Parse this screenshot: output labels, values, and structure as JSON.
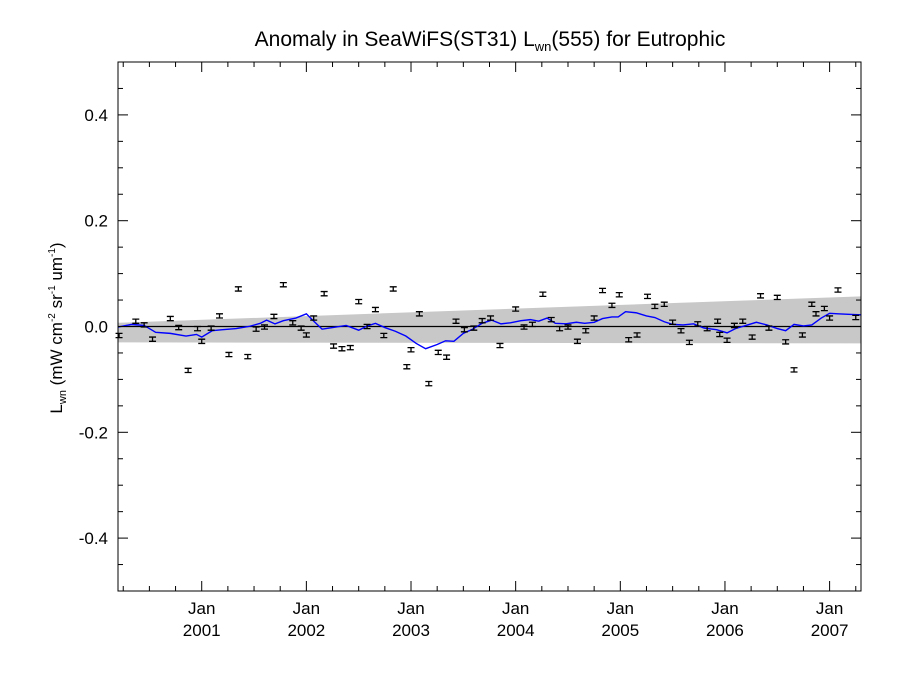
{
  "chart_data": {
    "type": "scatter",
    "title": {
      "prefix": "Anomaly in SeaWiFS(ST31) L",
      "sub": "wn",
      "suffix": "(555) for Eutrophic"
    },
    "ylabel": {
      "base": "L",
      "base_sub": "wn",
      "unit_open": " (mW cm",
      "sup1": "-2",
      "unit_mid": " sr",
      "sup2": "-1",
      "unit_mid2": " um",
      "sup3": "-1",
      "unit_close": ")"
    },
    "ylim": [
      -0.5,
      0.5
    ],
    "xlim": [
      2000.2,
      2007.3
    ],
    "y_ticks": [
      {
        "value": 0.4,
        "label": "0.4"
      },
      {
        "value": 0.2,
        "label": "0.2"
      },
      {
        "value": 0.0,
        "label": "0.0"
      },
      {
        "value": -0.2,
        "label": "-0.2"
      },
      {
        "value": -0.4,
        "label": "-0.4"
      }
    ],
    "x_ticks": [
      {
        "value": 2001.0,
        "line1": "Jan",
        "line2": "2001"
      },
      {
        "value": 2002.0,
        "line1": "Jan",
        "line2": "2002"
      },
      {
        "value": 2003.0,
        "line1": "Jan",
        "line2": "2003"
      },
      {
        "value": 2004.0,
        "line1": "Jan",
        "line2": "2004"
      },
      {
        "value": 2005.0,
        "line1": "Jan",
        "line2": "2005"
      },
      {
        "value": 2006.0,
        "line1": "Jan",
        "line2": "2006"
      },
      {
        "value": 2007.0,
        "line1": "Jan",
        "line2": "2007"
      }
    ],
    "band": {
      "color": "#c8c8c8",
      "upper": [
        [
          2000.2,
          0.007
        ],
        [
          2007.3,
          0.057
        ]
      ],
      "lower": [
        [
          2000.2,
          -0.03
        ],
        [
          2007.3,
          -0.032
        ]
      ]
    },
    "zero_line": {
      "value": 0.0,
      "color": "#000000"
    },
    "series": [
      {
        "kind": "points_with_error",
        "color": "#000000",
        "error": 0.004,
        "points": [
          [
            2000.21,
            -0.017
          ],
          [
            2000.37,
            0.01
          ],
          [
            2000.45,
            0.003
          ],
          [
            2000.53,
            -0.024
          ],
          [
            2000.7,
            0.015
          ],
          [
            2000.78,
            -0.002
          ],
          [
            2000.87,
            -0.083
          ],
          [
            2000.96,
            -0.004
          ],
          [
            2001.0,
            -0.028
          ],
          [
            2001.09,
            -0.003
          ],
          [
            2001.17,
            0.02
          ],
          [
            2001.26,
            -0.053
          ],
          [
            2001.35,
            0.071
          ],
          [
            2001.44,
            -0.057
          ],
          [
            2001.52,
            -0.005
          ],
          [
            2001.6,
            -0.001
          ],
          [
            2001.69,
            0.019
          ],
          [
            2001.78,
            0.079
          ],
          [
            2001.87,
            0.007
          ],
          [
            2001.95,
            -0.003
          ],
          [
            2002.0,
            -0.016
          ],
          [
            2002.07,
            0.016
          ],
          [
            2002.17,
            0.062
          ],
          [
            2002.26,
            -0.037
          ],
          [
            2002.34,
            -0.042
          ],
          [
            2002.42,
            -0.04
          ],
          [
            2002.5,
            0.047
          ],
          [
            2002.58,
            0.0
          ],
          [
            2002.66,
            0.032
          ],
          [
            2002.74,
            -0.017
          ],
          [
            2002.83,
            0.071
          ],
          [
            2002.96,
            -0.076
          ],
          [
            2003.0,
            -0.044
          ],
          [
            2003.08,
            0.024
          ],
          [
            2003.17,
            -0.108
          ],
          [
            2003.26,
            -0.049
          ],
          [
            2003.34,
            -0.058
          ],
          [
            2003.43,
            0.01
          ],
          [
            2003.51,
            -0.006
          ],
          [
            2003.6,
            -0.003
          ],
          [
            2003.68,
            0.011
          ],
          [
            2003.76,
            0.016
          ],
          [
            2003.85,
            -0.036
          ],
          [
            2004.0,
            0.033
          ],
          [
            2004.08,
            -0.001
          ],
          [
            2004.16,
            0.004
          ],
          [
            2004.26,
            0.061
          ],
          [
            2004.34,
            0.013
          ],
          [
            2004.42,
            -0.004
          ],
          [
            2004.5,
            -0.001
          ],
          [
            2004.59,
            -0.028
          ],
          [
            2004.67,
            -0.008
          ],
          [
            2004.75,
            0.016
          ],
          [
            2004.83,
            0.068
          ],
          [
            2004.92,
            0.04
          ],
          [
            2004.99,
            0.06
          ],
          [
            2005.08,
            -0.025
          ],
          [
            2005.16,
            -0.016
          ],
          [
            2005.26,
            0.057
          ],
          [
            2005.33,
            0.038
          ],
          [
            2005.42,
            0.042
          ],
          [
            2005.5,
            0.008
          ],
          [
            2005.58,
            -0.008
          ],
          [
            2005.66,
            -0.03
          ],
          [
            2005.74,
            0.005
          ],
          [
            2005.83,
            -0.004
          ],
          [
            2005.93,
            0.01
          ],
          [
            2005.95,
            -0.015
          ],
          [
            2006.02,
            -0.026
          ],
          [
            2006.09,
            0.002
          ],
          [
            2006.17,
            0.01
          ],
          [
            2006.26,
            -0.02
          ],
          [
            2006.34,
            0.058
          ],
          [
            2006.42,
            -0.003
          ],
          [
            2006.5,
            0.055
          ],
          [
            2006.58,
            -0.029
          ],
          [
            2006.66,
            -0.082
          ],
          [
            2006.74,
            -0.016
          ],
          [
            2006.83,
            0.042
          ],
          [
            2006.87,
            0.024
          ],
          [
            2006.95,
            0.034
          ],
          [
            2007.0,
            0.016
          ],
          [
            2007.08,
            0.069
          ],
          [
            2007.25,
            0.017
          ]
        ]
      },
      {
        "kind": "line",
        "color": "#0000ff",
        "points": [
          [
            2000.2,
            -0.001
          ],
          [
            2000.33,
            0.004
          ],
          [
            2000.45,
            0.002
          ],
          [
            2000.56,
            -0.011
          ],
          [
            2000.7,
            -0.013
          ],
          [
            2000.85,
            -0.018
          ],
          [
            2000.95,
            -0.015
          ],
          [
            2001.0,
            -0.02
          ],
          [
            2001.1,
            -0.008
          ],
          [
            2001.2,
            -0.006
          ],
          [
            2001.33,
            -0.004
          ],
          [
            2001.45,
            0.0
          ],
          [
            2001.56,
            0.006
          ],
          [
            2001.62,
            0.012
          ],
          [
            2001.7,
            0.005
          ],
          [
            2001.78,
            0.011
          ],
          [
            2001.9,
            0.016
          ],
          [
            2002.0,
            0.024
          ],
          [
            2002.06,
            0.012
          ],
          [
            2002.15,
            -0.005
          ],
          [
            2002.25,
            -0.002
          ],
          [
            2002.38,
            0.002
          ],
          [
            2002.5,
            -0.007
          ],
          [
            2002.58,
            0.001
          ],
          [
            2002.66,
            0.006
          ],
          [
            2002.75,
            -0.002
          ],
          [
            2002.85,
            -0.009
          ],
          [
            2002.95,
            -0.018
          ],
          [
            2003.05,
            -0.032
          ],
          [
            2003.14,
            -0.042
          ],
          [
            2003.25,
            -0.034
          ],
          [
            2003.33,
            -0.027
          ],
          [
            2003.41,
            -0.028
          ],
          [
            2003.5,
            -0.013
          ],
          [
            2003.58,
            -0.006
          ],
          [
            2003.68,
            0.006
          ],
          [
            2003.77,
            0.012
          ],
          [
            2003.86,
            0.005
          ],
          [
            2003.95,
            0.007
          ],
          [
            2004.05,
            0.011
          ],
          [
            2004.14,
            0.013
          ],
          [
            2004.22,
            0.01
          ],
          [
            2004.3,
            0.016
          ],
          [
            2004.38,
            0.006
          ],
          [
            2004.48,
            0.005
          ],
          [
            2004.58,
            0.008
          ],
          [
            2004.66,
            0.006
          ],
          [
            2004.75,
            0.008
          ],
          [
            2004.83,
            0.015
          ],
          [
            2004.92,
            0.018
          ],
          [
            2004.98,
            0.018
          ],
          [
            2005.05,
            0.028
          ],
          [
            2005.15,
            0.026
          ],
          [
            2005.25,
            0.02
          ],
          [
            2005.33,
            0.017
          ],
          [
            2005.42,
            0.009
          ],
          [
            2005.5,
            0.004
          ],
          [
            2005.6,
            0.003
          ],
          [
            2005.7,
            0.005
          ],
          [
            2005.8,
            -0.003
          ],
          [
            2005.92,
            -0.006
          ],
          [
            2006.02,
            -0.012
          ],
          [
            2006.1,
            -0.004
          ],
          [
            2006.2,
            0.002
          ],
          [
            2006.3,
            0.008
          ],
          [
            2006.4,
            0.003
          ],
          [
            2006.5,
            -0.004
          ],
          [
            2006.58,
            -0.008
          ],
          [
            2006.66,
            0.004
          ],
          [
            2006.75,
            0.001
          ],
          [
            2006.83,
            0.003
          ],
          [
            2006.92,
            0.016
          ],
          [
            2007.0,
            0.025
          ],
          [
            2007.08,
            0.024
          ],
          [
            2007.18,
            0.023
          ],
          [
            2007.3,
            0.022
          ]
        ]
      }
    ]
  }
}
